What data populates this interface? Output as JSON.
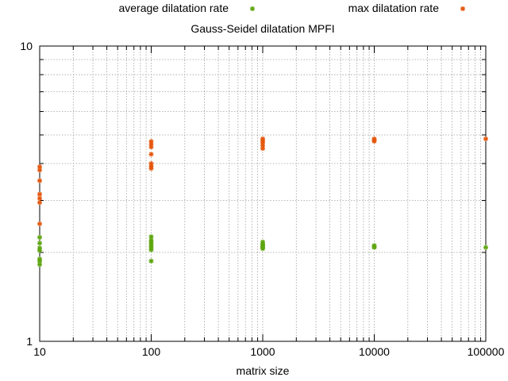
{
  "chart_data": {
    "type": "scatter",
    "title": "Gauss-Seidel dilatation MPFI",
    "xlabel": "matrix size",
    "ylabel": "",
    "xscale": "log",
    "yscale": "log",
    "xlim": [
      10,
      100000
    ],
    "ylim": [
      1,
      10
    ],
    "grid": true,
    "legend_position": "top",
    "x_ticks": [
      {
        "value": 10,
        "label": "10"
      },
      {
        "value": 100,
        "label": "100"
      },
      {
        "value": 1000,
        "label": "1000"
      },
      {
        "value": 10000,
        "label": "10000"
      },
      {
        "value": 100000,
        "label": "100000"
      }
    ],
    "y_ticks": [
      {
        "value": 1,
        "label": "1"
      },
      {
        "value": 10,
        "label": "10"
      }
    ],
    "series": [
      {
        "name": "average dilatation rate",
        "color": "#5ea60f",
        "points": [
          {
            "x": 10,
            "y": 2.25
          },
          {
            "x": 10,
            "y": 2.15
          },
          {
            "x": 10,
            "y": 2.07
          },
          {
            "x": 10,
            "y": 2.03
          },
          {
            "x": 10,
            "y": 1.9
          },
          {
            "x": 10,
            "y": 1.87
          },
          {
            "x": 10,
            "y": 1.82
          },
          {
            "x": 100,
            "y": 2.26
          },
          {
            "x": 100,
            "y": 2.2
          },
          {
            "x": 100,
            "y": 2.17
          },
          {
            "x": 100,
            "y": 2.14
          },
          {
            "x": 100,
            "y": 2.1
          },
          {
            "x": 100,
            "y": 2.07
          },
          {
            "x": 100,
            "y": 2.04
          },
          {
            "x": 100,
            "y": 1.87
          },
          {
            "x": 1000,
            "y": 2.17
          },
          {
            "x": 1000,
            "y": 2.14
          },
          {
            "x": 1000,
            "y": 2.12
          },
          {
            "x": 1000,
            "y": 2.1
          },
          {
            "x": 1000,
            "y": 2.08
          },
          {
            "x": 1000,
            "y": 2.06
          },
          {
            "x": 10000,
            "y": 2.11
          },
          {
            "x": 10000,
            "y": 2.09
          },
          {
            "x": 10000,
            "y": 2.08
          },
          {
            "x": 100000,
            "y": 2.08
          }
        ]
      },
      {
        "name": "max dilatation rate",
        "color": "#e4570d",
        "points": [
          {
            "x": 10,
            "y": 3.9
          },
          {
            "x": 10,
            "y": 3.8
          },
          {
            "x": 10,
            "y": 3.5
          },
          {
            "x": 10,
            "y": 3.15
          },
          {
            "x": 10,
            "y": 3.05
          },
          {
            "x": 10,
            "y": 2.95
          },
          {
            "x": 10,
            "y": 2.5
          },
          {
            "x": 100,
            "y": 4.75
          },
          {
            "x": 100,
            "y": 4.65
          },
          {
            "x": 100,
            "y": 4.55
          },
          {
            "x": 100,
            "y": 4.3
          },
          {
            "x": 100,
            "y": 4.0
          },
          {
            "x": 100,
            "y": 3.92
          },
          {
            "x": 100,
            "y": 3.85
          },
          {
            "x": 1000,
            "y": 4.85
          },
          {
            "x": 1000,
            "y": 4.78
          },
          {
            "x": 1000,
            "y": 4.7
          },
          {
            "x": 1000,
            "y": 4.6
          },
          {
            "x": 1000,
            "y": 4.5
          },
          {
            "x": 10000,
            "y": 4.85
          },
          {
            "x": 10000,
            "y": 4.8
          },
          {
            "x": 10000,
            "y": 4.76
          },
          {
            "x": 100000,
            "y": 4.85
          }
        ]
      }
    ]
  }
}
